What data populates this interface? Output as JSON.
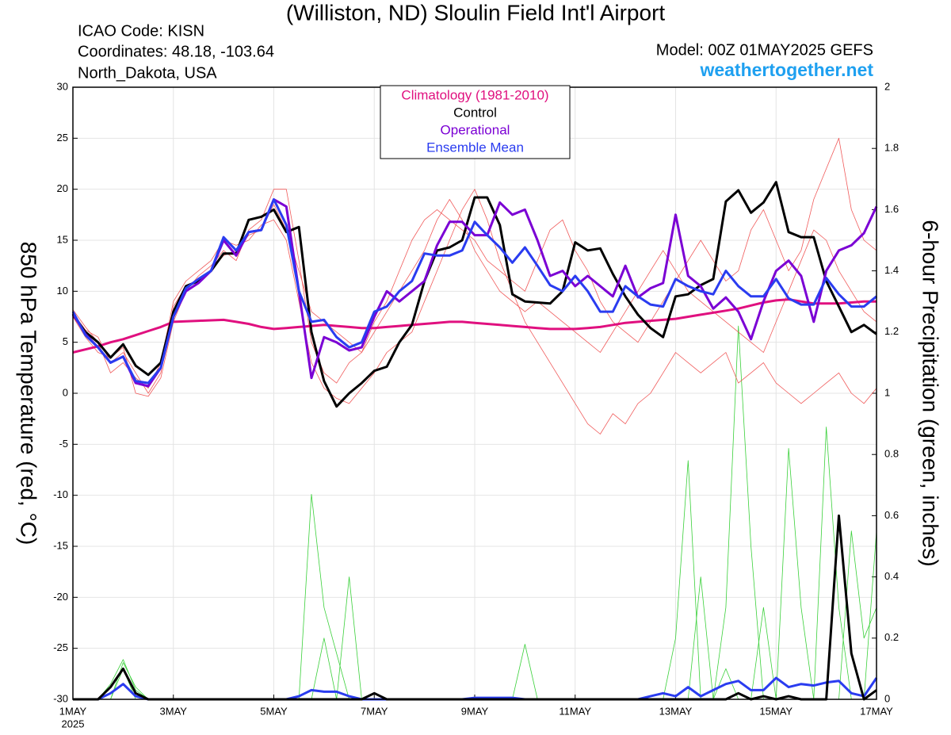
{
  "chart_data": {
    "type": "line",
    "title": "(Williston, ND) Sloulin Field Int'l Airport",
    "info_lines": [
      "ICAO Code: KISN",
      "Coordinates: 48.18, -103.64",
      "North_Dakota, USA"
    ],
    "model": "Model: 00Z 01MAY2025 GEFS",
    "source": "weathertogether.net",
    "y_label": "850 hPa Temperature (red, °C)",
    "y2_label": "6-hour Precipitation (green, inches)",
    "year": "2025",
    "categories": [
      "1MAY",
      null,
      null,
      null,
      null,
      null,
      null,
      null,
      "3MAY",
      null,
      null,
      null,
      null,
      null,
      null,
      null,
      "5MAY",
      null,
      null,
      null,
      null,
      null,
      null,
      null,
      "7MAY",
      null,
      null,
      null,
      null,
      null,
      null,
      null,
      "9MAY",
      null,
      null,
      null,
      null,
      null,
      null,
      null,
      "11MAY",
      null,
      null,
      null,
      null,
      null,
      null,
      null,
      "13MAY",
      null,
      null,
      null,
      null,
      null,
      null,
      null,
      "15MAY",
      null,
      null,
      null,
      null,
      null,
      null,
      null,
      "17MAY"
    ],
    "ylim": [
      -30,
      30
    ],
    "yticks": [
      -30,
      -25,
      -20,
      -15,
      -10,
      -5,
      0,
      5,
      10,
      15,
      20,
      25,
      30
    ],
    "y2lim": [
      0,
      2
    ],
    "y2ticks": [
      0,
      0.2,
      0.4,
      0.6,
      0.8,
      1,
      1.2,
      1.4,
      1.6,
      1.8,
      2
    ],
    "grid": true,
    "series": [
      {
        "color": "#3ad03a",
        "line_width": 0.8,
        "axis": "y2",
        "values": [
          0,
          0,
          0,
          0.05,
          0.13,
          0.03,
          0,
          0,
          0,
          0,
          0,
          0,
          0,
          0,
          0,
          0,
          0,
          0,
          0,
          0.67,
          0.3,
          0.15,
          0,
          0,
          0,
          0,
          0,
          0,
          0,
          0,
          0,
          0,
          0,
          0,
          0,
          0,
          0.18,
          0,
          0,
          0,
          0,
          0,
          0,
          0,
          0,
          0,
          0,
          0,
          0.2,
          0.78,
          0,
          0,
          0.1,
          0,
          0,
          0,
          0,
          0,
          0,
          0,
          0,
          0,
          0,
          0,
          0
        ]
      },
      {
        "color": "#3ad03a",
        "line_width": 0.8,
        "axis": "y2",
        "values": [
          0,
          0,
          0,
          0,
          0.12,
          0.04,
          0,
          0,
          0,
          0,
          0,
          0,
          0,
          0,
          0,
          0,
          0,
          0,
          0,
          0,
          0,
          0,
          0.4,
          0,
          0,
          0,
          0,
          0,
          0,
          0,
          0,
          0,
          0,
          0,
          0,
          0,
          0,
          0,
          0,
          0,
          0,
          0,
          0,
          0,
          0,
          0,
          0,
          0,
          0,
          0,
          0,
          0,
          0.3,
          1.22,
          0.5,
          0,
          0,
          0,
          0,
          0,
          0,
          0,
          0.55,
          0.2,
          0.3
        ]
      },
      {
        "color": "#3ad03a",
        "line_width": 0.8,
        "axis": "y2",
        "values": [
          0,
          0,
          0,
          0,
          0.1,
          0,
          0,
          0,
          0,
          0,
          0,
          0,
          0,
          0,
          0,
          0,
          0,
          0,
          0,
          0,
          0.2,
          0,
          0,
          0,
          0,
          0,
          0,
          0,
          0,
          0,
          0,
          0,
          0,
          0,
          0,
          0,
          0,
          0,
          0,
          0,
          0,
          0,
          0,
          0,
          0,
          0,
          0,
          0,
          0,
          0,
          0.4,
          0,
          0,
          0,
          0,
          0.3,
          0,
          0.82,
          0.3,
          0,
          0.89,
          0.3,
          0,
          0,
          0.55
        ]
      },
      {
        "color": "#f05a5a",
        "line_width": 0.8,
        "values": [
          7.5,
          5.5,
          4,
          3.5,
          4.5,
          0,
          -0.3,
          1.5,
          7,
          10,
          11.5,
          12.5,
          14,
          13,
          16,
          17,
          20,
          20,
          13,
          5,
          2,
          1,
          3,
          4,
          7,
          9,
          12,
          15,
          17,
          18,
          17,
          16,
          15,
          13,
          12,
          11,
          10,
          13,
          16,
          17,
          14,
          12,
          9,
          7,
          6,
          5,
          7,
          9,
          11,
          13,
          15,
          13,
          11,
          12,
          16,
          18,
          15,
          12,
          14,
          19,
          22,
          25,
          18,
          15,
          14
        ]
      },
      {
        "color": "#f05a5a",
        "line_width": 0.8,
        "values": [
          8.2,
          6.5,
          5,
          2,
          3,
          1.5,
          0.5,
          3,
          9,
          11,
          12,
          13,
          15,
          14.5,
          15,
          16.5,
          17,
          15,
          9,
          3,
          0.5,
          -0.5,
          -1,
          0.5,
          2,
          4,
          5,
          6,
          9,
          12,
          15,
          18,
          20,
          17,
          13,
          10,
          7,
          5,
          3,
          1,
          -1,
          -3,
          -4,
          -2,
          -3,
          -1,
          0,
          2,
          4,
          3,
          2,
          3,
          4,
          1,
          2,
          3,
          1,
          0,
          -1,
          0,
          1,
          2,
          0,
          -1,
          0.5
        ]
      },
      {
        "color": "#f05a5a",
        "line_width": 0.8,
        "values": [
          7.9,
          6.2,
          5.5,
          3,
          4,
          2,
          0,
          2,
          8.5,
          10.5,
          11,
          12,
          13.5,
          14,
          15.5,
          16,
          18.5,
          16,
          12,
          8,
          7,
          6,
          5,
          4,
          6,
          8,
          10,
          12,
          14,
          17,
          19,
          17,
          14,
          12,
          10,
          9,
          8,
          9,
          8,
          7,
          6,
          5,
          4,
          6,
          8,
          10,
          12,
          14,
          12,
          10,
          9,
          8,
          7,
          6,
          5,
          4,
          7,
          10,
          13,
          16,
          15,
          12,
          10,
          8,
          7
        ]
      },
      {
        "name": "Climatology (1981-2010)",
        "color": "#e0107f",
        "line_width": 3,
        "values": [
          4,
          4.3,
          4.6,
          5,
          5.3,
          5.7,
          6.1,
          6.5,
          7,
          7.05,
          7.1,
          7.15,
          7.2,
          7,
          6.8,
          6.5,
          6.3,
          6.4,
          6.5,
          6.6,
          6.7,
          6.6,
          6.5,
          6.4,
          6.4,
          6.5,
          6.6,
          6.7,
          6.8,
          6.9,
          7,
          7,
          6.9,
          6.8,
          6.7,
          6.6,
          6.5,
          6.4,
          6.3,
          6.3,
          6.3,
          6.4,
          6.5,
          6.7,
          6.9,
          7,
          7.1,
          7.2,
          7.3,
          7.5,
          7.7,
          7.9,
          8.1,
          8.3,
          8.6,
          8.9,
          9.1,
          9.2,
          9,
          8.8,
          8.8,
          8.8,
          8.9,
          9,
          9
        ]
      },
      {
        "color": "#2a3cf0",
        "line_width": 3,
        "axis": "y2",
        "values": [
          0,
          0,
          0,
          0.02,
          0.05,
          0.01,
          0,
          0,
          0,
          0,
          0,
          0,
          0,
          0,
          0,
          0,
          0,
          0,
          0.01,
          0.03,
          0.025,
          0.025,
          0.01,
          0,
          0,
          0,
          0,
          0,
          0,
          0,
          0,
          0,
          0.005,
          0.005,
          0.005,
          0.005,
          0,
          0,
          0,
          0,
          0,
          0,
          0,
          0,
          0,
          0,
          0.01,
          0.02,
          0.01,
          0.04,
          0.01,
          0.03,
          0.05,
          0.06,
          0.03,
          0.03,
          0.07,
          0.04,
          0.05,
          0.045,
          0.055,
          0.06,
          0.02,
          0.01,
          0.07
        ]
      },
      {
        "color": "#000000",
        "line_width": 3,
        "axis": "y2",
        "values": [
          0,
          0,
          0,
          0.04,
          0.1,
          0.02,
          0,
          0,
          0,
          0,
          0,
          0,
          0,
          0,
          0,
          0,
          0,
          0,
          0,
          0,
          0,
          0,
          0,
          0,
          0.02,
          0,
          0,
          0,
          0,
          0,
          0,
          0,
          0,
          0,
          0,
          0,
          0,
          0,
          0,
          0,
          0,
          0,
          0,
          0,
          0,
          0,
          0,
          0,
          0,
          0,
          0,
          0,
          0,
          0.02,
          0,
          0.01,
          0,
          0.01,
          0,
          0,
          0,
          0.6,
          0.15,
          0,
          0.03
        ]
      },
      {
        "name": "Control",
        "color": "#000000",
        "line_width": 3,
        "values": [
          7.7,
          6,
          5,
          3.5,
          4.8,
          2.7,
          1.8,
          3,
          8,
          10.5,
          11,
          12,
          13.7,
          13.7,
          17,
          17.3,
          18,
          15.8,
          16.3,
          6,
          1.2,
          -1.3,
          0,
          1,
          2.2,
          2.6,
          5,
          6.7,
          11,
          14,
          14.3,
          15,
          19.2,
          19.2,
          16.5,
          9.7,
          9,
          8.9,
          8.8,
          10,
          14.8,
          14,
          14.2,
          11.7,
          9.5,
          7.7,
          6.4,
          5.5,
          9.5,
          9.7,
          10.6,
          11.2,
          18.8,
          19.9,
          17.7,
          18.7,
          20.7,
          15.8,
          15.3,
          15.3,
          11,
          8.5,
          6,
          6.7,
          5.8
        ]
      },
      {
        "name": "Operational",
        "color": "#7b00d4",
        "line_width": 3,
        "values": [
          7.8,
          5.8,
          4.5,
          3,
          3.6,
          1,
          0.7,
          2.5,
          7.5,
          10,
          10.8,
          12,
          15,
          13.5,
          15.8,
          16,
          19,
          18.3,
          10,
          1.5,
          5.5,
          5,
          4.2,
          4.5,
          7.5,
          10,
          9,
          10,
          11,
          14.5,
          16.8,
          16.8,
          15.5,
          15.5,
          18.7,
          17.5,
          18,
          15,
          11.5,
          12,
          10.5,
          11.5,
          10.5,
          9.5,
          12.5,
          9.4,
          10.3,
          10.8,
          17.5,
          11.5,
          10.5,
          8.3,
          9.4,
          8,
          5.3,
          9,
          12,
          13,
          11.5,
          7,
          12,
          14,
          14.5,
          15.7,
          18.3
        ]
      },
      {
        "name": "Ensemble Mean",
        "color": "#2a3cf0",
        "line_width": 3,
        "values": [
          8,
          5.7,
          4.5,
          3,
          3.6,
          1.2,
          1,
          2.5,
          7.5,
          10.3,
          11.2,
          12,
          15.3,
          14,
          15.8,
          16,
          19,
          16.5,
          10,
          7,
          7.2,
          5.5,
          4.5,
          5,
          8,
          8.5,
          10,
          11,
          13.7,
          13.5,
          13.5,
          14,
          16.8,
          15.5,
          14.3,
          12.8,
          14.3,
          12.5,
          10.6,
          10,
          11.5,
          10,
          8,
          8,
          10.5,
          9.5,
          8.7,
          8.5,
          11.2,
          10.5,
          10,
          9.7,
          12,
          10.5,
          9.5,
          9.5,
          11.2,
          9.3,
          8.7,
          8.7,
          11.3,
          9.7,
          8.5,
          8.5,
          9.5
        ]
      }
    ]
  }
}
